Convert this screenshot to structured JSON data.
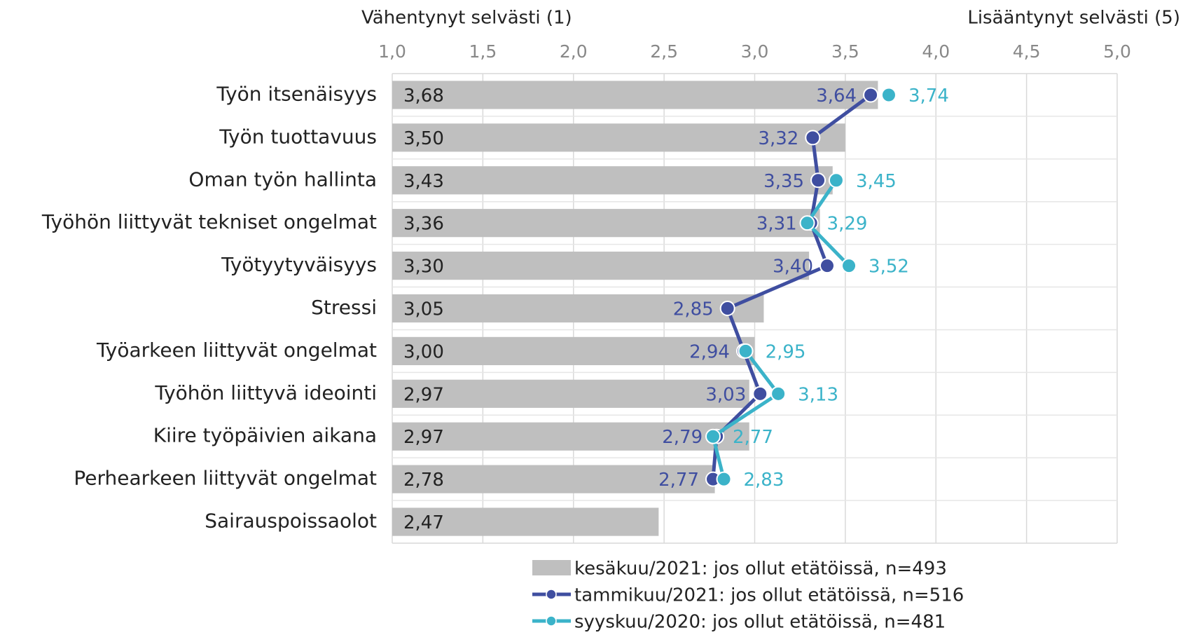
{
  "chart_data": {
    "type": "bar",
    "orientation": "horizontal",
    "x_label_left": "Vähentynyt selvästi (1)",
    "x_label_right": "Lisääntynyt selvästi (5)",
    "categories": [
      "Työn itsenäisyys",
      "Työn tuottavuus",
      "Oman työn hallinta",
      "Työhön liittyvät tekniset ongelmat",
      "Työtyytyväisyys",
      "Stressi",
      "Työarkeen liittyvät ongelmat",
      "Työhön liittyvä ideointi",
      "Kiire työpäivien aikana",
      "Perhearkeen liittyvät ongelmat",
      "Sairauspoissaolot"
    ],
    "series": [
      {
        "name": "kesäkuu/2021: jos ollut etätöissä, n=493",
        "type": "bar",
        "color": "#bfbfbf",
        "values": [
          3.68,
          3.5,
          3.43,
          3.36,
          3.3,
          3.05,
          3.0,
          2.97,
          2.97,
          2.78,
          2.47
        ],
        "value_labels": [
          "3,68",
          "3,50",
          "3,43",
          "3,36",
          "3,30",
          "3,05",
          "3,00",
          "2,97",
          "2,97",
          "2,78",
          "2,47"
        ]
      },
      {
        "name": "tammikuu/2021: jos ollut etätöissä, n=516",
        "type": "line",
        "color": "#3f4ea0",
        "values": [
          3.64,
          3.32,
          3.35,
          3.31,
          3.4,
          2.85,
          2.94,
          3.03,
          2.79,
          2.77,
          null
        ],
        "value_labels": [
          "3,64",
          "3,32",
          "3,35",
          "3,31",
          "3,40",
          "2,85",
          "2,94",
          "3,03",
          "2,79",
          "2,77",
          null
        ]
      },
      {
        "name": "syyskuu/2020: jos ollut etätöissä, n=481",
        "type": "line",
        "color": "#3bb3c9",
        "values": [
          3.74,
          null,
          3.45,
          3.29,
          3.52,
          null,
          2.95,
          3.13,
          2.77,
          2.83,
          null
        ],
        "value_labels": [
          "3,74",
          null,
          "3,45",
          "3,29",
          "3,52",
          null,
          "2,95",
          "3,13",
          "2,77",
          "2,83",
          null
        ]
      }
    ],
    "xlim": [
      1,
      5
    ],
    "xticks": [
      {
        "value": 1,
        "label": "1,0"
      },
      {
        "value": 1.5,
        "label": "1,5"
      },
      {
        "value": 2,
        "label": "2,0"
      },
      {
        "value": 2.5,
        "label": "2,5"
      },
      {
        "value": 3,
        "label": "3,0"
      },
      {
        "value": 3.5,
        "label": "3,5"
      },
      {
        "value": 4,
        "label": "4,0"
      },
      {
        "value": 4.5,
        "label": "4,5"
      },
      {
        "value": 5,
        "label": "5,0"
      }
    ],
    "grid": true,
    "legend": "bottom"
  }
}
